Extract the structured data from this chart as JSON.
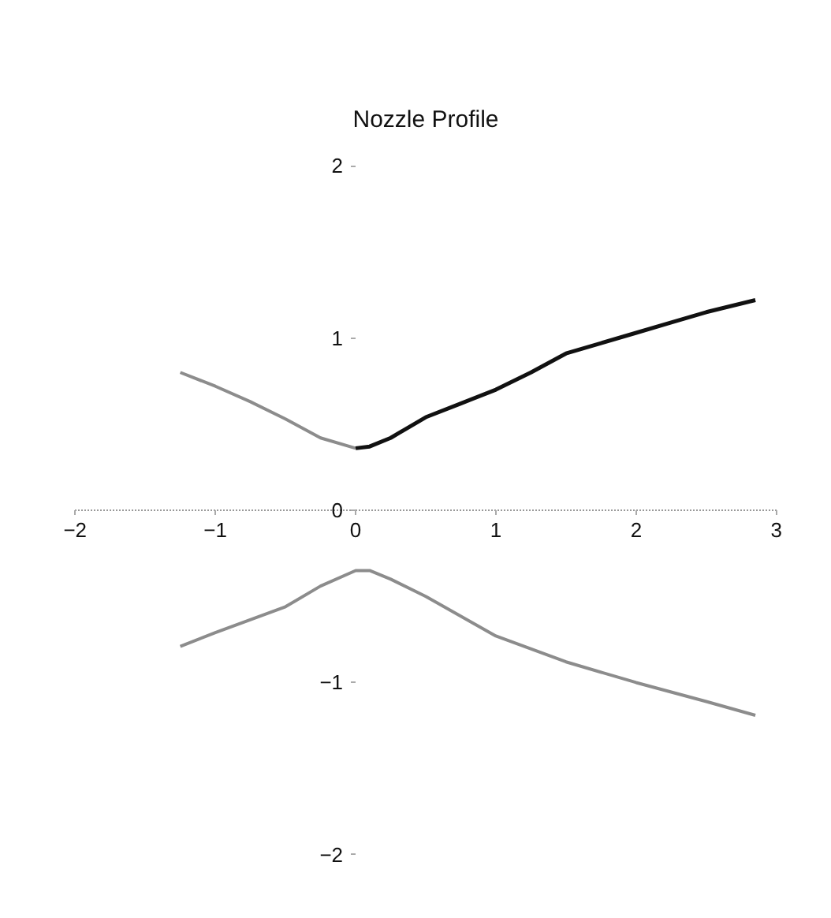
{
  "chart_data": {
    "type": "line",
    "title": "Nozzle Profile",
    "xlim": [
      -2,
      3
    ],
    "ylim": [
      -2,
      2
    ],
    "xticks": [
      -2,
      -1,
      0,
      1,
      2,
      3
    ],
    "yticks": [
      -2,
      -1,
      0,
      1,
      2
    ],
    "marker": "none",
    "line_style": "solid",
    "series": [
      {
        "color": "#8c8c8c",
        "x": [
          -1.25,
          -1.0,
          -0.75,
          -0.5,
          -0.25,
          0.0
        ],
        "values": [
          0.8,
          0.72,
          0.63,
          0.53,
          0.42,
          0.36
        ]
      },
      {
        "color": "#111111",
        "x": [
          0.0,
          0.1,
          0.25,
          0.5,
          0.75,
          1.0,
          1.25,
          1.5,
          1.75,
          2.0,
          2.25,
          2.5,
          2.85
        ],
        "values": [
          0.36,
          0.37,
          0.42,
          0.54,
          0.62,
          0.7,
          0.8,
          0.91,
          0.97,
          1.03,
          1.09,
          1.15,
          1.22
        ]
      },
      {
        "color": "#8c8c8c",
        "x": [
          -1.25,
          -1.0,
          -0.5,
          -0.25,
          0.0,
          0.1,
          0.25,
          0.5,
          1.0,
          1.5,
          2.0,
          2.5,
          2.85
        ],
        "values": [
          -0.79,
          -0.71,
          -0.56,
          -0.44,
          -0.35,
          -0.35,
          -0.4,
          -0.5,
          -0.73,
          -0.88,
          -1.0,
          -1.11,
          -1.19
        ]
      }
    ]
  }
}
